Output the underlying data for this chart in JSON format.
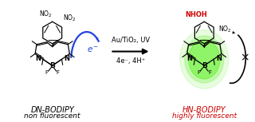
{
  "fig_width": 3.2,
  "fig_height": 1.53,
  "dpi": 100,
  "bg_color": "#ffffff",
  "arrow_label_top": "Au/TiO₂, UV",
  "arrow_label_bottom": "4e⁻, 4H⁺",
  "dn_label1": "DN-BODIPY",
  "dn_label2": "non fluorescent",
  "dn_label1_color": "#000000",
  "dn_label2_color": "#000000",
  "hn_label1": "HN-BODIPY",
  "hn_label2": "highly fluorescent",
  "hn_label1_color": "#cc0000",
  "hn_label2_color": "#cc0000",
  "nhoh_color": "#cc0000",
  "no2_color": "#000000",
  "green_glow_color": "#44ee00",
  "blue_arrow_color": "#2244dd",
  "font_size_label": 7.0,
  "font_size_sublabel": 6.5,
  "font_size_chem": 5.5,
  "font_size_atom": 6.0,
  "font_size_arrow_label": 6.0
}
